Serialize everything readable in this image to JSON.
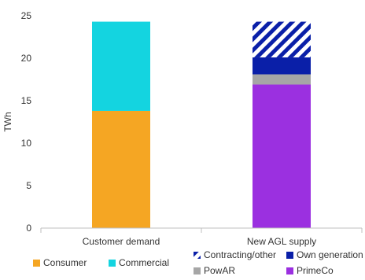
{
  "chart_data": {
    "type": "bar",
    "stacked": true,
    "title": "",
    "xlabel": "",
    "ylabel": "TWh",
    "ylim": [
      0,
      25
    ],
    "yticks": [
      "0",
      "5",
      "10",
      "15",
      "20",
      "25"
    ],
    "grid": false,
    "legend_position": "bottom",
    "categories": [
      "Customer demand",
      "New AGL supply"
    ],
    "series": [
      {
        "name": "Consumer",
        "values": [
          13.8,
          0
        ],
        "color": "#F5A623",
        "pattern": "solid"
      },
      {
        "name": "Commercial",
        "values": [
          10.5,
          0
        ],
        "color": "#14D4E0",
        "pattern": "solid"
      },
      {
        "name": "PrimeCo",
        "values": [
          0,
          16.9
        ],
        "color": "#9B30E0",
        "pattern": "solid"
      },
      {
        "name": "PowAR",
        "values": [
          0,
          1.2
        ],
        "color": "#A6A6A6",
        "pattern": "solid"
      },
      {
        "name": "Own generation",
        "values": [
          0,
          2.0
        ],
        "color": "#0A1FA8",
        "pattern": "solid"
      },
      {
        "name": "Contracting/other",
        "values": [
          0,
          4.2
        ],
        "color": "#0A1FA8",
        "pattern": "hatch"
      }
    ],
    "legend": [
      {
        "label": "Consumer",
        "color": "#F5A623",
        "pattern": "solid"
      },
      {
        "label": "Commercial",
        "color": "#14D4E0",
        "pattern": "solid"
      },
      {
        "label": "Contracting/other",
        "color": "#0A1FA8",
        "pattern": "hatch"
      },
      {
        "label": "Own generation",
        "color": "#0A1FA8",
        "pattern": "solid"
      },
      {
        "label": "PowAR",
        "color": "#A6A6A6",
        "pattern": "solid"
      },
      {
        "label": "PrimeCo",
        "color": "#9B30E0",
        "pattern": "solid"
      }
    ]
  }
}
